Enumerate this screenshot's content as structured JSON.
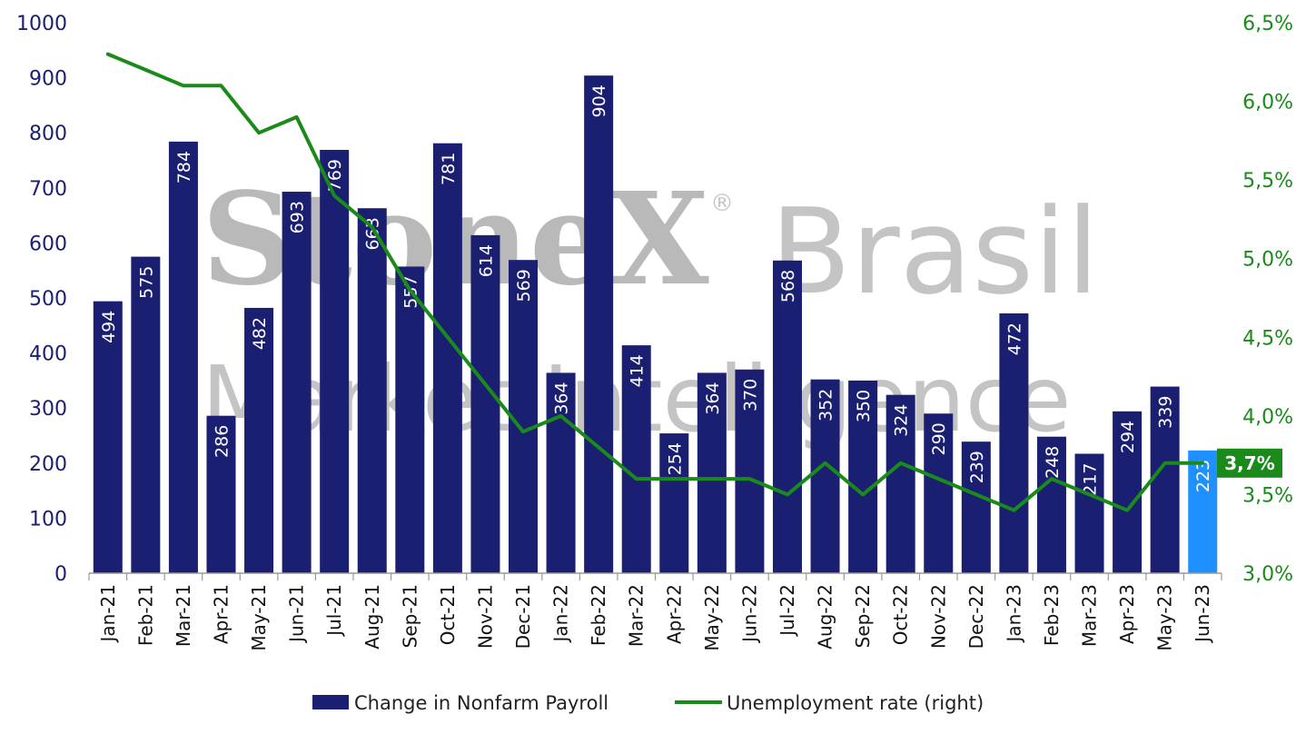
{
  "watermark": {
    "brand": "StoneX",
    "brand_suffix": "Brasil",
    "registered": "®",
    "subtitle": "Market Intelligence"
  },
  "colors": {
    "bar": "#1a1f71",
    "bar_highlight": "#1e90ff",
    "line": "#1a8a1a",
    "left_axis": "#1a1f71",
    "right_axis": "#1a8a1a"
  },
  "chart_data": {
    "type": "bar",
    "title": "",
    "xlabel": "",
    "ylabel": "",
    "categories": [
      "Jan-21",
      "Feb-21",
      "Mar-21",
      "Apr-21",
      "May-21",
      "Jun-21",
      "Jul-21",
      "Aug-21",
      "Sep-21",
      "Oct-21",
      "Nov-21",
      "Dec-21",
      "Jan-22",
      "Feb-22",
      "Mar-22",
      "Apr-22",
      "May-22",
      "Jun-22",
      "Jul-22",
      "Aug-22",
      "Sep-22",
      "Oct-22",
      "Nov-22",
      "Dec-22",
      "Jan-23",
      "Feb-23",
      "Mar-23",
      "Apr-23",
      "May-23",
      "Jun-23"
    ],
    "series": [
      {
        "name": "Change in Nonfarm Payroll",
        "type": "bar",
        "axis": "left",
        "values": [
          494,
          575,
          784,
          286,
          482,
          693,
          769,
          663,
          557,
          781,
          614,
          569,
          364,
          904,
          414,
          254,
          364,
          370,
          568,
          352,
          350,
          324,
          290,
          239,
          472,
          248,
          217,
          294,
          339,
          223
        ],
        "labels": [
          "494",
          "575",
          "784",
          "286",
          "482",
          "693",
          "769",
          "663",
          "557",
          "781",
          "614",
          "569",
          "364",
          "904",
          "414",
          "254",
          "364",
          "370",
          "568",
          "352",
          "350",
          "324",
          "290",
          "239",
          "472",
          "248",
          "217",
          "294",
          "339",
          "223"
        ],
        "highlight_last": true
      },
      {
        "name": "Unemployment rate (right)",
        "type": "line",
        "axis": "right",
        "values": [
          6.3,
          6.2,
          6.1,
          6.1,
          5.8,
          5.9,
          5.4,
          5.2,
          4.8,
          4.5,
          4.2,
          3.9,
          4.0,
          3.8,
          3.6,
          3.6,
          3.6,
          3.6,
          3.5,
          3.7,
          3.5,
          3.7,
          3.6,
          3.5,
          3.4,
          3.6,
          3.5,
          3.4,
          3.7,
          3.7
        ]
      }
    ],
    "y_left": {
      "lim": [
        0,
        1000
      ],
      "ticks": [
        0,
        100,
        200,
        300,
        400,
        500,
        600,
        700,
        800,
        900,
        1000
      ],
      "tick_labels": [
        "0",
        "100",
        "200",
        "300",
        "400",
        "500",
        "600",
        "700",
        "800",
        "900",
        "1000"
      ]
    },
    "y_right": {
      "lim": [
        3.0,
        6.5
      ],
      "ticks": [
        3.0,
        3.5,
        4.0,
        4.5,
        5.0,
        5.5,
        6.0,
        6.5
      ],
      "tick_labels": [
        "3,0%",
        "3,5%",
        "4,0%",
        "4,5%",
        "5,0%",
        "5,5%",
        "6,0%",
        "6,5%"
      ]
    },
    "last_value_callout": "3,7%",
    "grid": false,
    "legend": {
      "position": "bottom",
      "entries": [
        "Change in Nonfarm Payroll",
        "Unemployment rate (right)"
      ]
    }
  }
}
